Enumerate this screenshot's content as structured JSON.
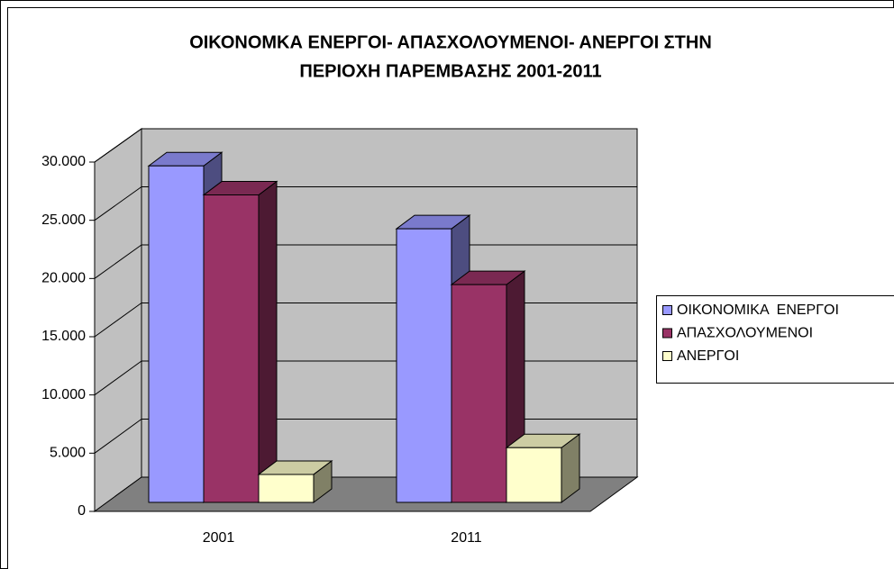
{
  "chart_data": {
    "type": "bar3d",
    "title": [
      "ΟΙΚΟΝΟΜΚΑ ΕΝΕΡΓΟΙ- ΑΠΑΣΧΟΛΟΥΜΕΝΟΙ- ΑΝΕΡΓΟΙ ΣΤΗΝ",
      "ΠΕΡΙΟΧΗ ΠΑΡΕΜΒΑΣΗΣ 2001-2011"
    ],
    "categories": [
      "2001",
      "2011"
    ],
    "series": [
      {
        "name": "ΟΙΚΟΝΟΜΙΚΑ  ΕΝΕΡΓΟΙ",
        "color": "#9999ff",
        "values": [
          28900,
          23500
        ]
      },
      {
        "name": "ΑΠΑΣΧΟΛΟΥΜΕΝΟΙ",
        "color": "#993366",
        "values": [
          26400,
          18700
        ]
      },
      {
        "name": "ΑΝΕΡΓΟΙ",
        "color": "#ffffcc",
        "values": [
          2400,
          4700
        ]
      }
    ],
    "ylim": [
      0,
      30000
    ],
    "yticks": [
      0,
      {
        "value": 5000,
        "label": "5.000"
      },
      {
        "value": 10000,
        "label": "10.000"
      },
      {
        "value": 15000,
        "label": "15.000"
      },
      {
        "value": 20000,
        "label": "20.000"
      },
      {
        "value": 25000,
        "label": "25.000"
      },
      {
        "value": 30000,
        "label": "30.000"
      }
    ],
    "grid": true,
    "legend": "right"
  }
}
